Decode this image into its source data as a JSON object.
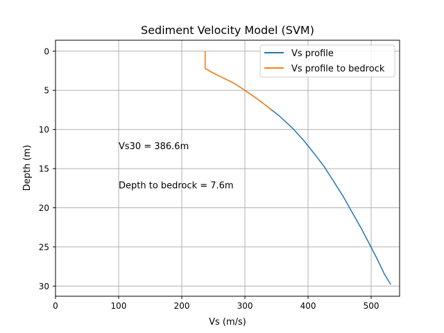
{
  "chart_data": {
    "type": "line",
    "title": "Sediment Velocity Model (SVM)",
    "xlabel": "Vs (m/s)",
    "ylabel": "Depth (m)",
    "xlim": [
      0,
      545
    ],
    "ylim": [
      31.3,
      -1.4
    ],
    "y_inverted": true,
    "grid": true,
    "legend_position": "upper-right",
    "xticks": [
      0,
      100,
      200,
      300,
      400,
      500
    ],
    "yticks": [
      0,
      5,
      10,
      15,
      20,
      25,
      30
    ],
    "annotations": [
      {
        "text": "Vs30 = 386.6m",
        "x": 100,
        "y": 12.1
      },
      {
        "text": "Depth to bedrock = 7.6m",
        "x": 100,
        "y": 17.1
      }
    ],
    "series": [
      {
        "name": "Vs profile",
        "color": "#1f77b4",
        "x": [
          237,
          237,
          248,
          265,
          283,
          300,
          318,
          336,
          355,
          375,
          393,
          410,
          426,
          441,
          456,
          470,
          484,
          497,
          510,
          521,
          531
        ],
        "y": [
          0,
          2.2,
          2.7,
          3.4,
          4.1,
          5.0,
          6.0,
          7.1,
          8.3,
          9.8,
          11.4,
          13.1,
          14.8,
          16.7,
          18.6,
          20.6,
          22.6,
          24.6,
          26.6,
          28.5,
          29.8
        ]
      },
      {
        "name": "Vs profile to bedrock",
        "color": "#ff7f0e",
        "x": [
          237,
          237,
          248,
          265,
          283,
          300,
          318,
          336,
          343
        ],
        "y": [
          0,
          2.2,
          2.7,
          3.4,
          4.1,
          5.0,
          6.0,
          7.1,
          7.6
        ]
      }
    ]
  }
}
